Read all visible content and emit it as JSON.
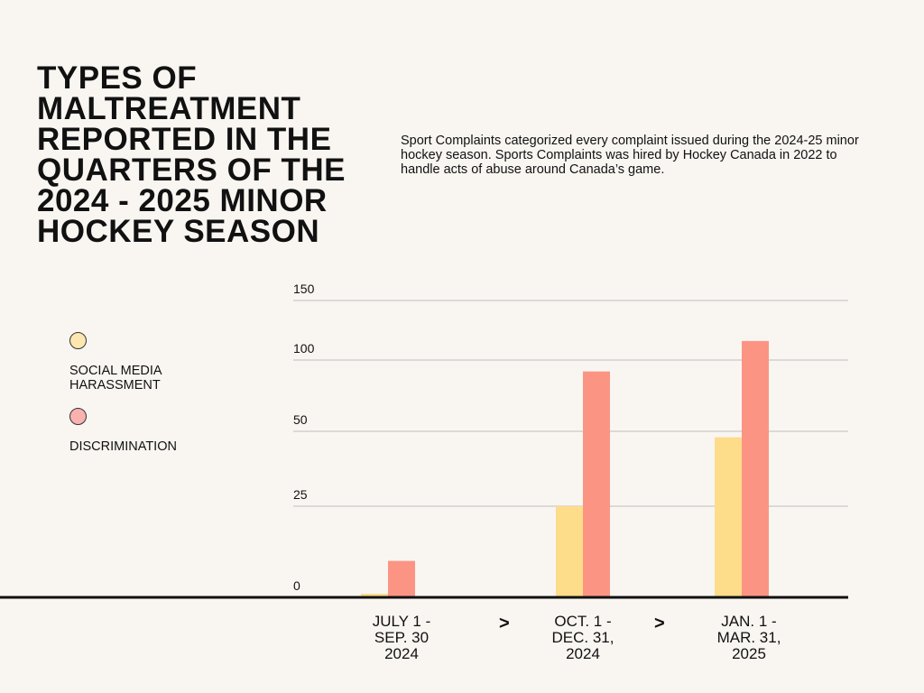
{
  "chart_data": {
    "type": "bar",
    "title": "TYPES OF MALTREATMENT REPORTED IN THE QUARTERS OF THE 2024 - 2025 MINOR HOCKEY SEASON",
    "subtitle": "Sport Complaints categorized every complaint issued during the 2024-25 minor hockey season. Sports Complaints was hired by Hockey Canada in 2022 to handle acts of abuse around Canada’s game.",
    "categories": [
      "JULY 1 - SEP. 30 2024",
      "OCT. 1 - DEC. 31, 2024",
      "JAN. 1 - MAR. 31, 2025"
    ],
    "category_lines": [
      [
        "JULY 1 -",
        "SEP. 30",
        "2024"
      ],
      [
        "OCT. 1 -",
        "DEC. 31,",
        "2024"
      ],
      [
        "JAN. 1 -",
        "MAR. 31,",
        "2025"
      ]
    ],
    "separator": ">",
    "series": [
      {
        "name": "SOCIAL MEDIA HARASSMENT",
        "values": [
          1,
          25,
          48
        ],
        "color": "#FDDC8A",
        "legend_color": "#FDE7B0"
      },
      {
        "name": "DISCRIMINATION",
        "values": [
          10,
          92,
          116
        ],
        "color": "#FC9484",
        "legend_color": "#F9B2B0"
      }
    ],
    "y_ticks": [
      0,
      25,
      50,
      100,
      150
    ],
    "ylim": [
      0,
      150
    ],
    "y_scale": "non-uniform (tick spacing not proportional)",
    "grid": true,
    "legend_placement": "left",
    "xlabel": "",
    "ylabel": ""
  }
}
